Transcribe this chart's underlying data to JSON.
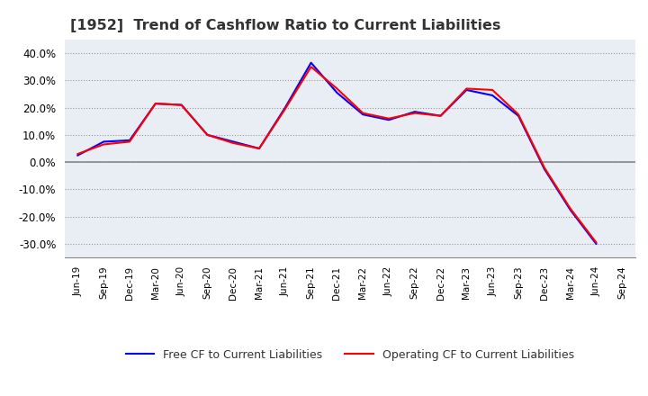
{
  "title": "[1952]  Trend of Cashflow Ratio to Current Liabilities",
  "x_labels": [
    "Jun-19",
    "Sep-19",
    "Dec-19",
    "Mar-20",
    "Jun-20",
    "Sep-20",
    "Dec-20",
    "Mar-21",
    "Jun-21",
    "Sep-21",
    "Dec-21",
    "Mar-22",
    "Jun-22",
    "Sep-22",
    "Dec-22",
    "Mar-23",
    "Jun-23",
    "Sep-23",
    "Dec-23",
    "Mar-24",
    "Jun-24",
    "Sep-24"
  ],
  "operating_cf": [
    3.0,
    6.5,
    7.5,
    21.5,
    21.0,
    10.0,
    7.0,
    5.0,
    19.5,
    35.0,
    27.0,
    18.0,
    16.0,
    18.0,
    17.0,
    27.0,
    26.5,
    17.5,
    -2.0,
    -17.0,
    -29.5,
    null
  ],
  "free_cf": [
    2.5,
    7.5,
    8.0,
    21.5,
    21.0,
    10.0,
    7.5,
    5.0,
    20.0,
    36.5,
    25.5,
    17.5,
    15.5,
    18.5,
    17.0,
    26.5,
    24.5,
    17.0,
    -2.5,
    -17.5,
    -30.0,
    null
  ],
  "ylim": [
    -35,
    45
  ],
  "yticks": [
    -30,
    -20,
    -10,
    0,
    10,
    20,
    30,
    40
  ],
  "operating_color": "#ff0000",
  "free_color": "#0000ff",
  "background_color": "#ffffff",
  "plot_bg_color": "#e8eef4",
  "grid_color": "#aaaaaa",
  "zero_line_color": "#888888",
  "title_fontsize": 11.5,
  "legend_labels": [
    "Operating CF to Current Liabilities",
    "Free CF to Current Liabilities"
  ]
}
